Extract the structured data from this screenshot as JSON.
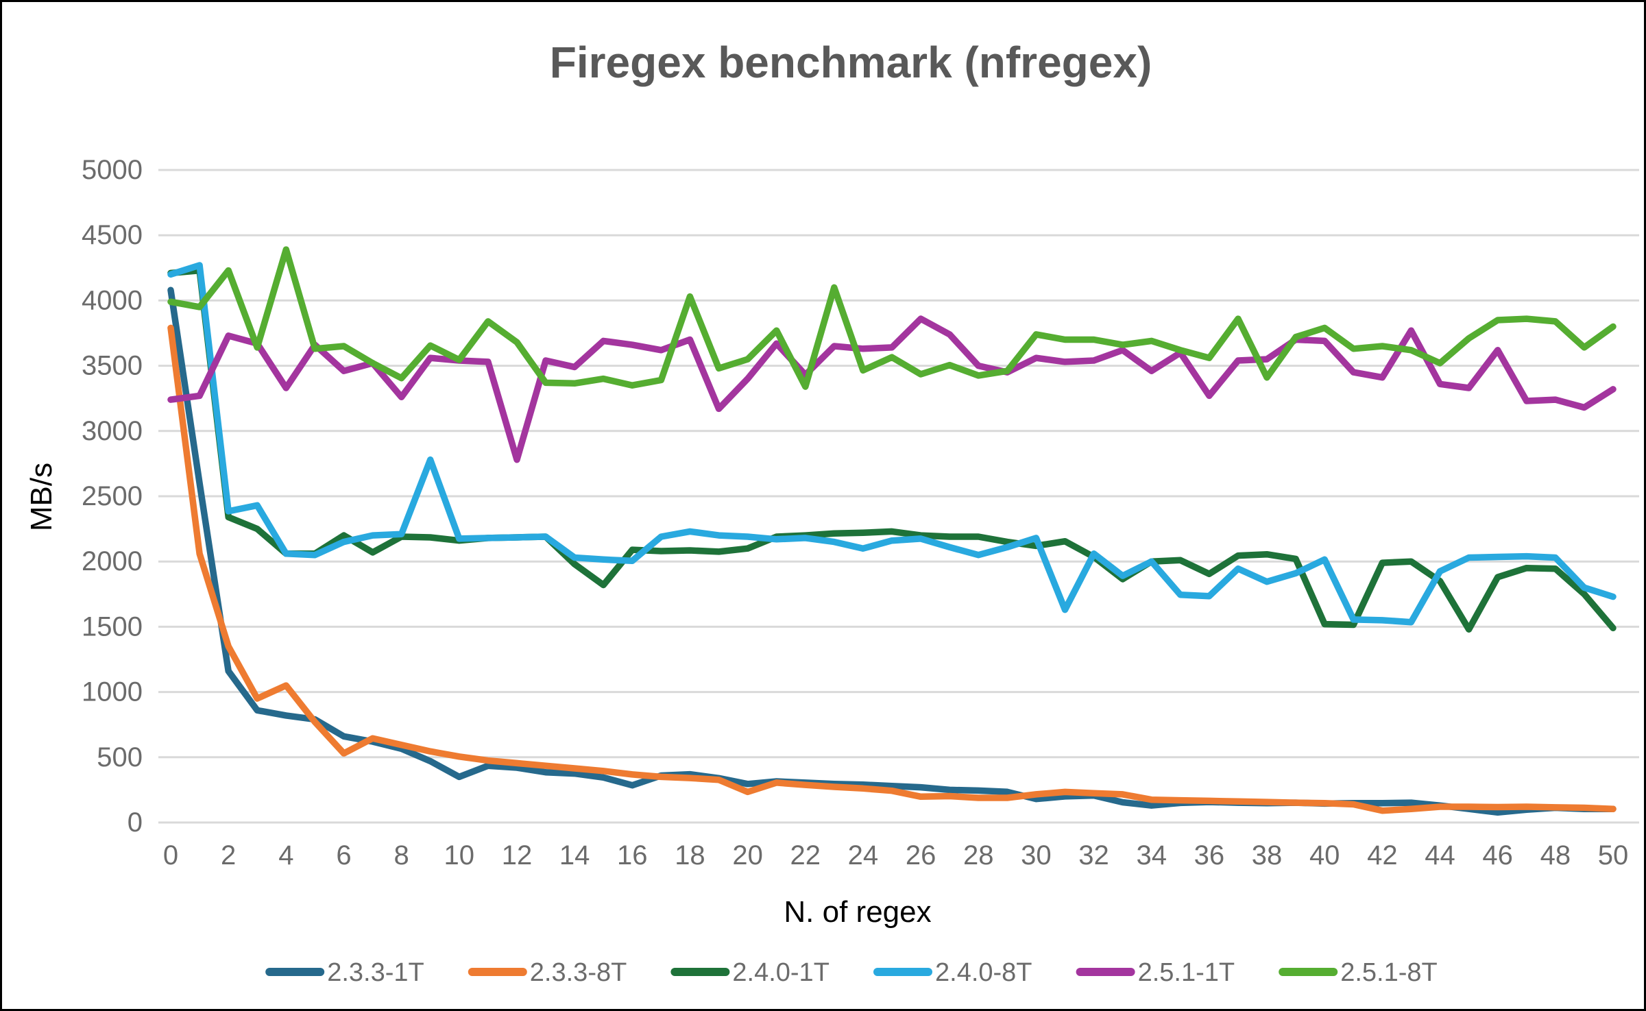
{
  "title": "Firegex benchmark (nfregex)",
  "chart_data": {
    "type": "line",
    "title": "Firegex benchmark (nfregex)",
    "xlabel": "N. of regex",
    "ylabel": "MB/s",
    "ylim": [
      0,
      5000
    ],
    "ytick_step": 500,
    "xlim": [
      0,
      50
    ],
    "xtick_step": 2,
    "grid": true,
    "legend_position": "bottom",
    "x": [
      0,
      1,
      2,
      3,
      4,
      5,
      6,
      7,
      8,
      9,
      10,
      11,
      12,
      13,
      14,
      15,
      16,
      17,
      18,
      19,
      20,
      21,
      22,
      23,
      24,
      25,
      26,
      27,
      28,
      29,
      30,
      31,
      32,
      33,
      34,
      35,
      36,
      37,
      38,
      39,
      40,
      41,
      42,
      43,
      44,
      45,
      46,
      47,
      48,
      49,
      50
    ],
    "series": [
      {
        "name": "2.3.3-1T",
        "color": "#26698C",
        "values": [
          4080,
          2600,
          1160,
          860,
          820,
          790,
          660,
          620,
          565,
          470,
          350,
          435,
          420,
          385,
          375,
          345,
          285,
          360,
          370,
          340,
          295,
          315,
          305,
          295,
          290,
          280,
          270,
          250,
          245,
          235,
          180,
          200,
          207,
          155,
          130,
          150,
          157,
          152,
          148,
          152,
          145,
          148,
          148,
          152,
          130,
          104,
          77,
          98,
          113,
          104,
          104
        ]
      },
      {
        "name": "2.3.3-8T",
        "color": "#EE7B31",
        "values": [
          3790,
          2060,
          1350,
          950,
          1050,
          770,
          530,
          645,
          595,
          545,
          505,
          475,
          455,
          435,
          415,
          395,
          368,
          350,
          341,
          327,
          234,
          305,
          288,
          273,
          261,
          243,
          198,
          202,
          189,
          189,
          216,
          234,
          225,
          216,
          175,
          170,
          166,
          161,
          157,
          152,
          148,
          139,
          91,
          104,
          121,
          121,
          118,
          121,
          116,
          113,
          104
        ]
      },
      {
        "name": "2.4.0-1T",
        "color": "#1E7239",
        "values": [
          4210,
          4230,
          2340,
          2250,
          2060,
          2060,
          2200,
          2070,
          2190,
          2185,
          2160,
          2180,
          2185,
          2190,
          1980,
          1820,
          2090,
          2080,
          2085,
          2075,
          2100,
          2190,
          2200,
          2215,
          2220,
          2230,
          2200,
          2190,
          2190,
          2150,
          2120,
          2155,
          2035,
          1865,
          2000,
          2010,
          1905,
          2045,
          2055,
          2020,
          1520,
          1515,
          1990,
          2000,
          1850,
          1480,
          1880,
          1950,
          1945,
          1750,
          1490
        ]
      },
      {
        "name": "2.4.0-8T",
        "color": "#29A9DF",
        "values": [
          4200,
          4270,
          2385,
          2430,
          2060,
          2050,
          2150,
          2200,
          2210,
          2780,
          2175,
          2180,
          2185,
          2190,
          2030,
          2015,
          2005,
          2190,
          2230,
          2200,
          2190,
          2170,
          2180,
          2150,
          2100,
          2160,
          2175,
          2110,
          2050,
          2110,
          2180,
          1630,
          2060,
          1890,
          2000,
          1745,
          1735,
          1945,
          1845,
          1910,
          2015,
          1555,
          1550,
          1535,
          1925,
          2030,
          2035,
          2040,
          2030,
          1800,
          1730
        ]
      },
      {
        "name": "2.5.1-1T",
        "color": "#A3359E",
        "values": [
          3240,
          3270,
          3730,
          3670,
          3330,
          3660,
          3460,
          3520,
          3260,
          3560,
          3540,
          3530,
          2780,
          3540,
          3490,
          3690,
          3660,
          3620,
          3700,
          3170,
          3400,
          3670,
          3430,
          3650,
          3630,
          3640,
          3860,
          3740,
          3500,
          3450,
          3560,
          3530,
          3540,
          3620,
          3460,
          3600,
          3270,
          3540,
          3550,
          3700,
          3690,
          3450,
          3410,
          3770,
          3360,
          3330,
          3620,
          3230,
          3240,
          3180,
          3320
        ]
      },
      {
        "name": "2.5.1-8T",
        "color": "#55AD31",
        "values": [
          3990,
          3950,
          4230,
          3640,
          4390,
          3630,
          3650,
          3520,
          3405,
          3655,
          3545,
          3840,
          3680,
          3370,
          3365,
          3400,
          3350,
          3390,
          4030,
          3480,
          3550,
          3770,
          3340,
          4100,
          3465,
          3565,
          3435,
          3505,
          3425,
          3460,
          3740,
          3700,
          3700,
          3660,
          3690,
          3620,
          3560,
          3860,
          3410,
          3720,
          3790,
          3630,
          3650,
          3620,
          3520,
          3710,
          3850,
          3860,
          3840,
          3640,
          3800
        ]
      }
    ]
  },
  "style": {
    "title_color": "#595959",
    "tick_color": "#6B6B6B",
    "axis_title_color": "#000000",
    "grid_color": "#D9D9D9",
    "background": "#FFFFFF",
    "border_color": "#000000"
  }
}
